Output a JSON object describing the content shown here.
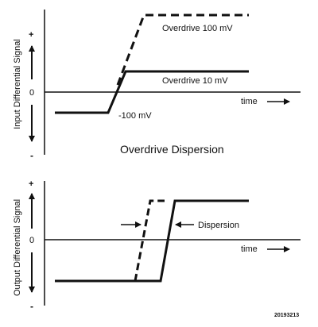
{
  "top_panel": {
    "y_axis_label": "Input Differential Signal",
    "plus_sign": "+",
    "minus_sign": "-",
    "zero_label": "0",
    "time_label": "time",
    "annotations": {
      "overdrive_100": "Overdrive 100 mV",
      "overdrive_10": "Overdrive 10 mV",
      "minus_100": "-100 mV"
    }
  },
  "center_title": "Overdrive Dispersion",
  "bottom_panel": {
    "y_axis_label": "Output Differential Signal",
    "plus_sign": "+",
    "minus_sign": "-",
    "zero_label": "0",
    "time_label": "time",
    "annotations": {
      "dispersion": "Dispersion"
    }
  },
  "figure_id": "20193213",
  "colors": {
    "ink": "#111111",
    "background": "#ffffff"
  }
}
